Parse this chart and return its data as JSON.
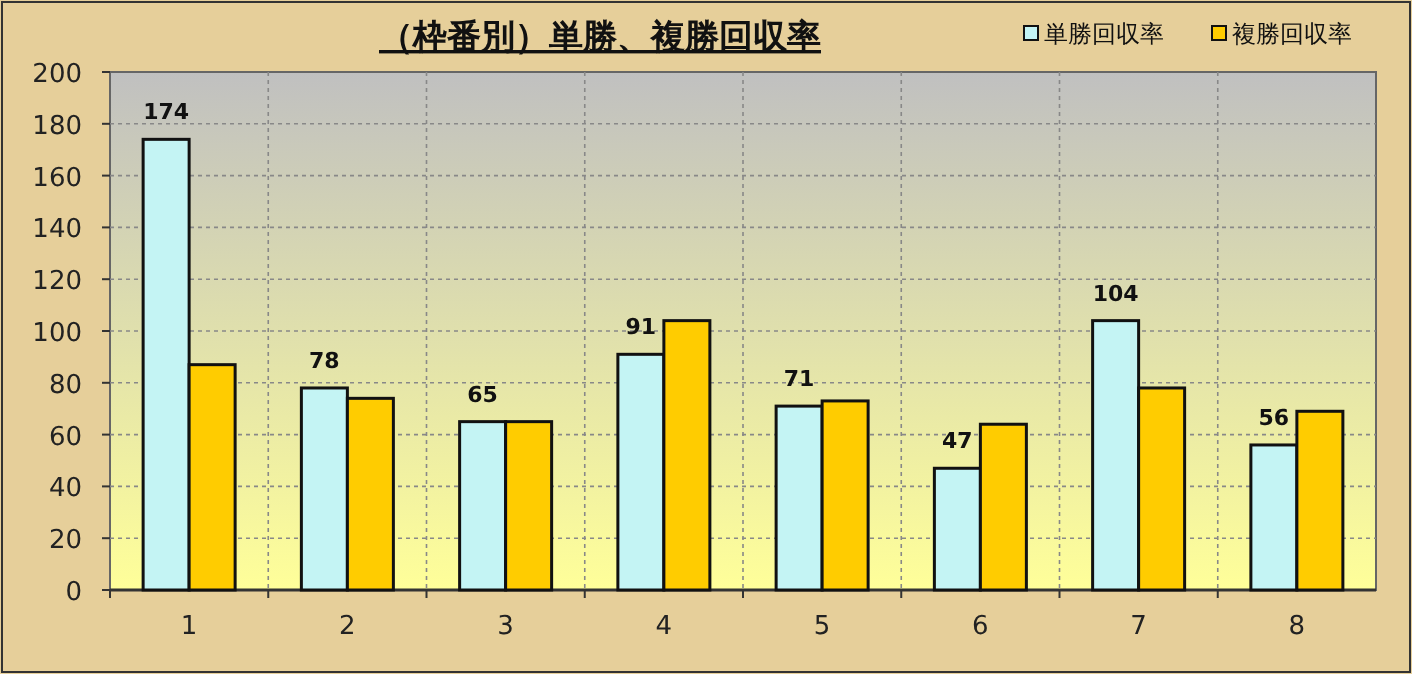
{
  "chart_data": {
    "type": "bar",
    "title": "（枠番別）単勝、複勝回収率",
    "categories": [
      "1",
      "2",
      "3",
      "4",
      "5",
      "6",
      "7",
      "8"
    ],
    "series": [
      {
        "name": "単勝回収率",
        "color": "#c4f4f4",
        "values": [
          174,
          78,
          65,
          91,
          71,
          47,
          104,
          56
        ],
        "value_labels": [
          "174",
          "78",
          "65",
          "91",
          "71",
          "47",
          "104",
          "56"
        ]
      },
      {
        "name": "複勝回収率",
        "color": "#ffcc00",
        "values": [
          87,
          74,
          65,
          104,
          73,
          64,
          78,
          69
        ]
      }
    ],
    "ylim": [
      0,
      200
    ],
    "yticks": [
      0,
      20,
      40,
      60,
      80,
      100,
      120,
      140,
      160,
      180,
      200
    ],
    "grid": true,
    "legend": "top right"
  }
}
